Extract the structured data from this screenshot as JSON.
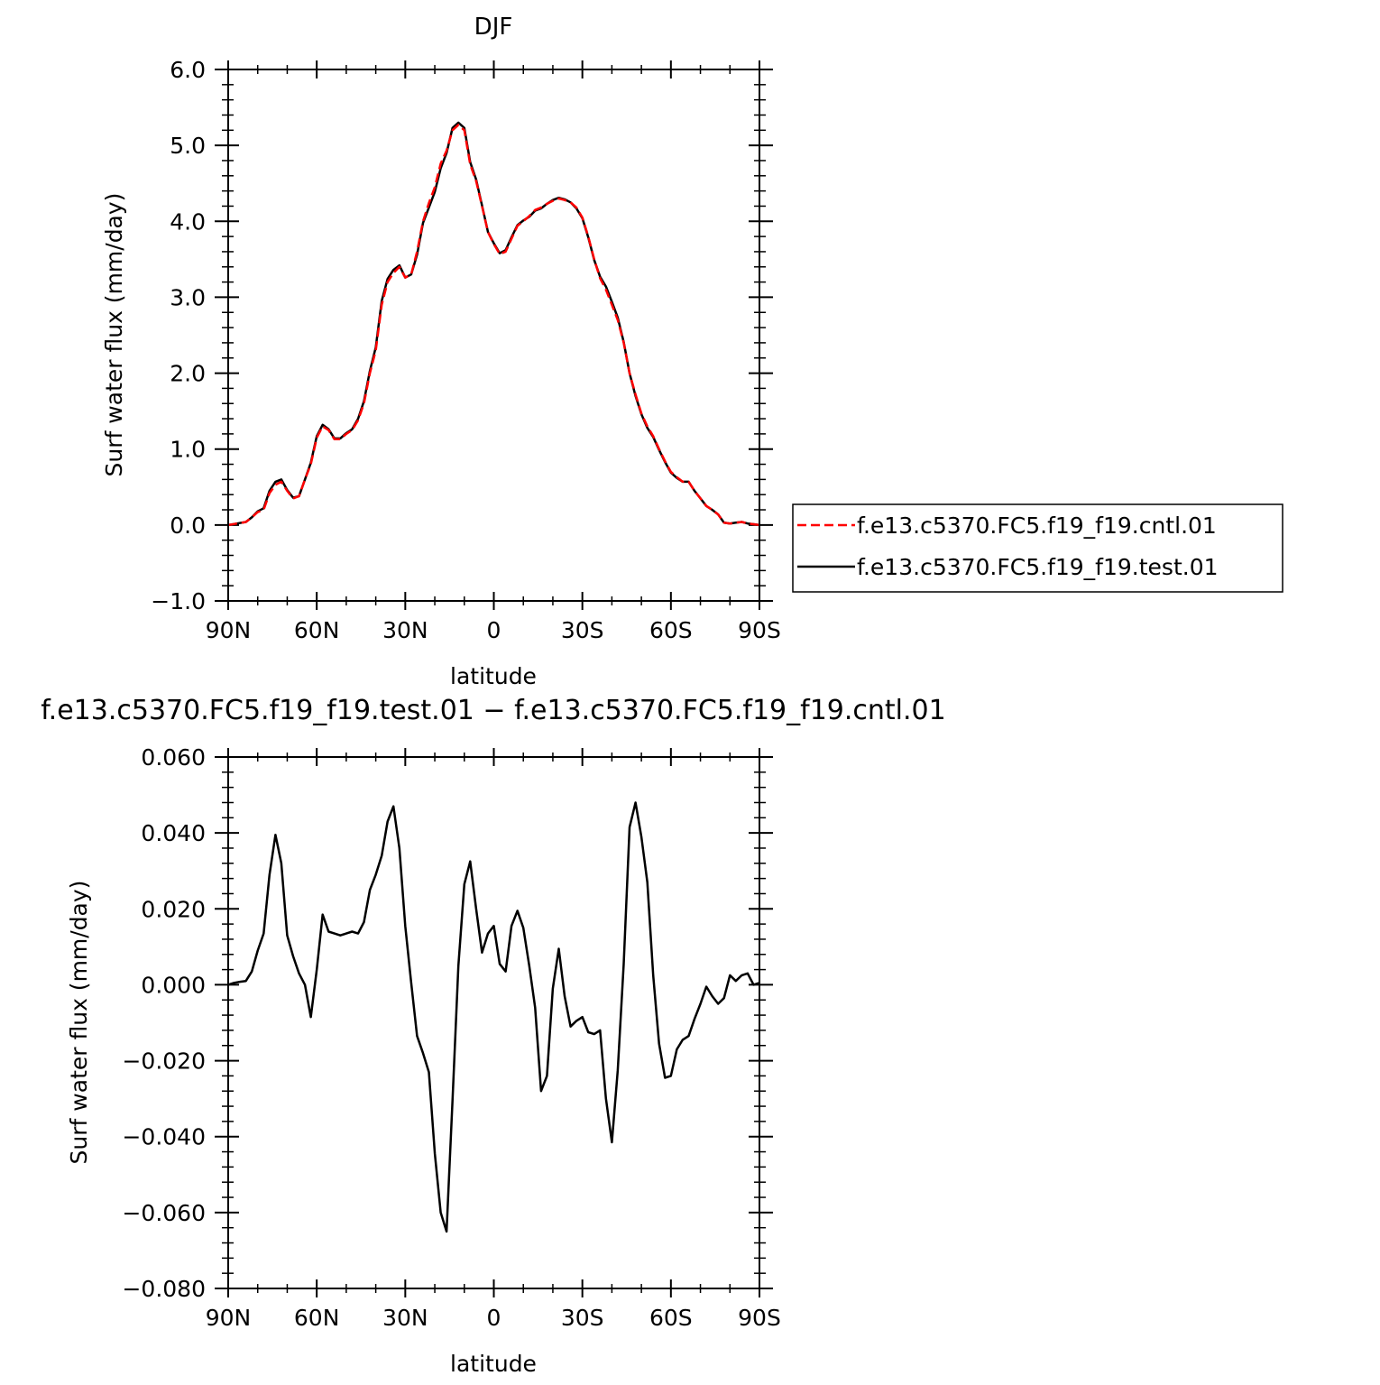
{
  "chart_data": [
    {
      "type": "line",
      "title": "DJF",
      "xlabel": "latitude",
      "ylabel": "Surf water flux (mm/day)",
      "xlim": [
        90,
        -90
      ],
      "ylim": [
        -1.0,
        6.0
      ],
      "x_ticks": [
        90,
        60,
        30,
        0,
        -30,
        -60,
        -90
      ],
      "x_tick_labels": [
        "90N",
        "60N",
        "30N",
        "0",
        "30S",
        "60S",
        "90S"
      ],
      "y_ticks": [
        -1,
        0,
        1,
        2,
        3,
        4,
        5,
        6
      ],
      "y_tick_labels": [
        "−1.0",
        "0.0",
        "1.0",
        "2.0",
        "3.0",
        "4.0",
        "5.0",
        "6.0"
      ],
      "grid": false,
      "legend_position": "right",
      "x": [
        90,
        87,
        84,
        82,
        80,
        78,
        76,
        74,
        72,
        70,
        68,
        66,
        64,
        62,
        60,
        58,
        56,
        54,
        52,
        50,
        48,
        46,
        44,
        42,
        40,
        38,
        36,
        34,
        32,
        30,
        28,
        26,
        24,
        22,
        20,
        18,
        16,
        14,
        12,
        10,
        8,
        6,
        4,
        2,
        0,
        -2,
        -4,
        -6,
        -8,
        -10,
        -12,
        -14,
        -16,
        -18,
        -20,
        -22,
        -24,
        -26,
        -28,
        -30,
        -32,
        -34,
        -36,
        -38,
        -40,
        -42,
        -44,
        -46,
        -48,
        -50,
        -52,
        -54,
        -56,
        -58,
        -60,
        -62,
        -64,
        -66,
        -68,
        -70,
        -72,
        -74,
        -76,
        -78,
        -80,
        -82,
        -84,
        -86,
        -88,
        -90
      ],
      "series": [
        {
          "name": "f.e13.c5370.FC5.f19_f19.cntl.01",
          "color": "#ff0000",
          "dash": "dashed",
          "values": [
            0.0,
            0.02,
            0.04,
            0.1,
            0.17,
            0.2,
            0.42,
            0.53,
            0.57,
            0.45,
            0.35,
            0.38,
            0.6,
            0.8,
            1.15,
            1.3,
            1.25,
            1.13,
            1.13,
            1.2,
            1.25,
            1.38,
            1.6,
            2.0,
            2.3,
            2.9,
            3.2,
            3.32,
            3.4,
            3.26,
            3.3,
            3.6,
            4.0,
            4.24,
            4.45,
            4.76,
            4.93,
            5.2,
            5.27,
            5.2,
            4.75,
            4.53,
            4.2,
            3.86,
            3.7,
            3.57,
            3.6,
            3.77,
            3.94,
            4.0,
            4.07,
            4.15,
            4.18,
            4.23,
            4.27,
            4.3,
            4.28,
            4.25,
            4.18,
            4.05,
            3.8,
            3.5,
            3.25,
            3.1,
            2.9,
            2.7,
            2.4,
            2.0,
            1.72,
            1.47,
            1.3,
            1.17,
            1.0,
            0.84,
            0.7,
            0.63,
            0.57,
            0.57,
            0.45,
            0.35,
            0.25,
            0.2,
            0.14,
            0.03,
            0.02,
            0.03,
            0.04,
            0.02,
            0.01,
            0.0
          ]
        },
        {
          "name": "f.e13.c5370.FC5.f19_f19.test.01",
          "color": "#000000",
          "dash": "solid",
          "values": [
            0.0,
            0.02,
            0.04,
            0.1,
            0.18,
            0.22,
            0.45,
            0.57,
            0.6,
            0.46,
            0.36,
            0.38,
            0.6,
            0.82,
            1.17,
            1.32,
            1.26,
            1.14,
            1.14,
            1.21,
            1.26,
            1.4,
            1.63,
            2.03,
            2.34,
            2.95,
            3.24,
            3.36,
            3.42,
            3.26,
            3.3,
            3.56,
            3.98,
            4.18,
            4.39,
            4.7,
            4.9,
            5.23,
            5.3,
            5.23,
            4.78,
            4.55,
            4.21,
            3.86,
            3.71,
            3.58,
            3.62,
            3.79,
            3.95,
            4.01,
            4.06,
            4.14,
            4.17,
            4.23,
            4.28,
            4.31,
            4.29,
            4.25,
            4.17,
            4.04,
            3.79,
            3.49,
            3.27,
            3.14,
            2.94,
            2.73,
            2.41,
            2.0,
            1.7,
            1.46,
            1.28,
            1.16,
            0.99,
            0.83,
            0.69,
            0.62,
            0.57,
            0.57,
            0.45,
            0.35,
            0.25,
            0.2,
            0.14,
            0.03,
            0.02,
            0.03,
            0.04,
            0.02,
            0.01,
            0.0
          ]
        }
      ]
    },
    {
      "type": "line",
      "title": "f.e13.c5370.FC5.f19_f19.test.01  −  f.e13.c5370.FC5.f19_f19.cntl.01",
      "xlabel": "latitude",
      "ylabel": "Surf water flux (mm/day)",
      "xlim": [
        90,
        -90
      ],
      "ylim": [
        -0.08,
        0.06
      ],
      "x_ticks": [
        90,
        60,
        30,
        0,
        -30,
        -60,
        -90
      ],
      "x_tick_labels": [
        "90N",
        "60N",
        "30N",
        "0",
        "30S",
        "60S",
        "90S"
      ],
      "y_ticks": [
        -0.08,
        -0.06,
        -0.04,
        -0.02,
        0.0,
        0.02,
        0.04,
        0.06
      ],
      "y_tick_labels": [
        "−0.080",
        "−0.060",
        "−0.040",
        "−0.020",
        "0.000",
        "0.020",
        "0.040",
        "0.060"
      ],
      "grid": false,
      "series": [
        {
          "color": "#000000",
          "dash": "solid",
          "x": [
            90,
            88,
            86,
            84,
            82,
            80,
            78,
            76,
            74,
            72,
            70,
            68,
            66,
            64,
            62,
            60,
            58,
            56,
            54,
            52,
            50,
            48,
            46,
            44,
            42,
            40,
            38,
            36,
            34,
            32,
            30,
            28,
            26,
            24,
            22,
            20,
            18,
            16,
            14,
            12,
            10,
            8,
            6,
            4,
            2,
            0,
            -2,
            -4,
            -6,
            -8,
            -10,
            -12,
            -14,
            -16,
            -18,
            -20,
            -22,
            -24,
            -26,
            -28,
            -30,
            -32,
            -34,
            -36,
            -38,
            -40,
            -42,
            -44,
            -46,
            -48,
            -50,
            -52,
            -54,
            -56,
            -58,
            -60,
            -62,
            -64,
            -66,
            -68,
            -70,
            -72,
            -74,
            -76,
            -78,
            -80,
            -82,
            -84,
            -86,
            -88,
            -90
          ],
          "values": [
            0.0,
            0.0005,
            0.0008,
            0.001,
            0.0035,
            0.009,
            0.0135,
            0.029,
            0.0395,
            0.032,
            0.013,
            0.0075,
            0.003,
            0.0,
            -0.0085,
            0.004,
            0.0185,
            0.014,
            0.0135,
            0.013,
            0.0135,
            0.014,
            0.0135,
            0.0165,
            0.025,
            0.029,
            0.034,
            0.043,
            0.047,
            0.036,
            0.0155,
            0.0005,
            -0.0135,
            -0.018,
            -0.023,
            -0.0445,
            -0.06,
            -0.065,
            -0.0305,
            0.005,
            0.0265,
            0.0325,
            0.02,
            0.0085,
            0.0135,
            0.0155,
            0.0055,
            0.0035,
            0.0155,
            0.0195,
            0.015,
            0.005,
            -0.006,
            -0.028,
            -0.024,
            -0.001,
            0.0095,
            -0.003,
            -0.011,
            -0.0095,
            -0.0085,
            -0.0125,
            -0.013,
            -0.012,
            -0.03,
            -0.0415,
            -0.0225,
            0.0055,
            0.0415,
            0.048,
            0.039,
            0.027,
            0.0025,
            -0.0155,
            -0.0245,
            -0.024,
            -0.017,
            -0.0145,
            -0.0135,
            -0.009,
            -0.005,
            -0.0005,
            -0.003,
            -0.005,
            -0.0035,
            0.0025,
            0.001,
            0.0025,
            0.003,
            0.0,
            0.0005
          ]
        }
      ]
    }
  ]
}
